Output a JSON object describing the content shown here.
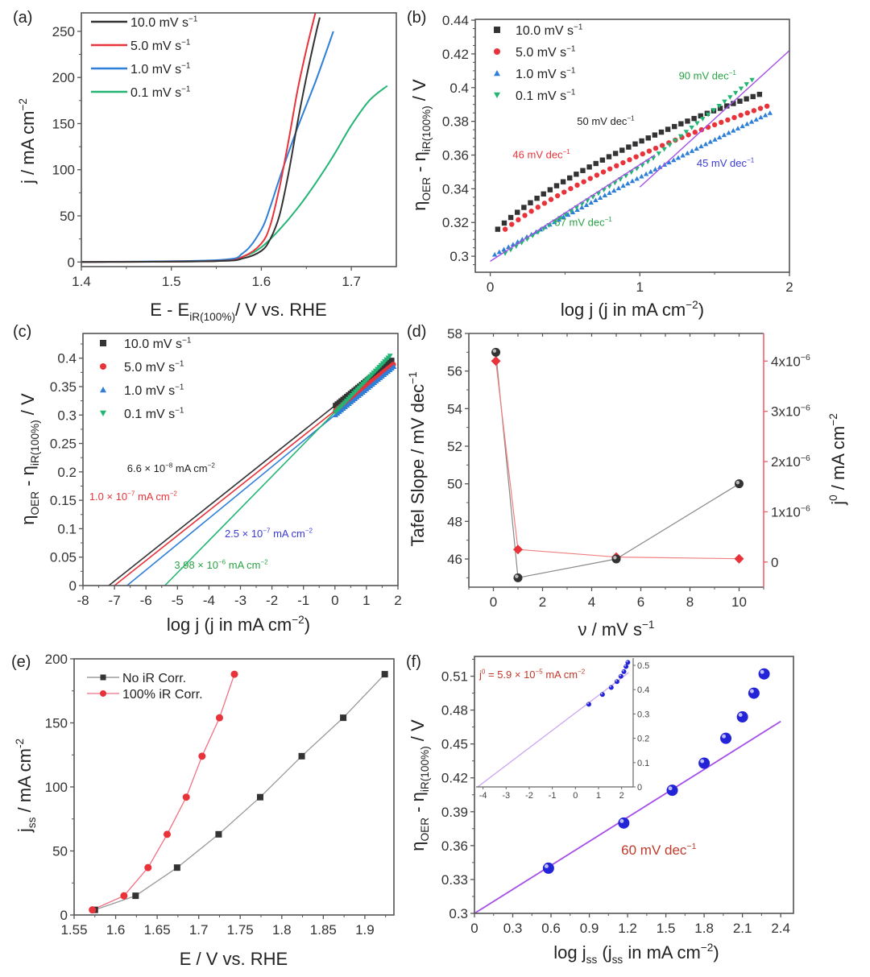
{
  "chart_data": [
    {
      "panel": "(a)",
      "type": "line",
      "xlabel": "E - E_iR(100%) / V vs. RHE",
      "ylabel": "j / mA cm^-2",
      "xlim": [
        1.4,
        1.75
      ],
      "ylim": [
        -5,
        270
      ],
      "xticks": [
        "1.4",
        "1.5",
        "1.6",
        "1.7"
      ],
      "yticks": [
        "0",
        "50",
        "100",
        "150",
        "200",
        "250"
      ],
      "legend": "top-left",
      "series": [
        {
          "name": "10.0 mV s-1",
          "color": "#333333",
          "x": [
            1.4,
            1.55,
            1.58,
            1.6,
            1.61,
            1.62,
            1.63,
            1.64,
            1.65,
            1.66,
            1.665
          ],
          "y": [
            0,
            1,
            4,
            12,
            25,
            50,
            95,
            150,
            200,
            245,
            265
          ]
        },
        {
          "name": "5.0 mV s-1",
          "color": "#e8333a",
          "x": [
            1.4,
            1.55,
            1.58,
            1.6,
            1.61,
            1.62,
            1.63,
            1.64,
            1.65,
            1.66
          ],
          "y": [
            0,
            1,
            6,
            20,
            40,
            80,
            130,
            185,
            230,
            270
          ]
        },
        {
          "name": "1.0 mV s-1",
          "color": "#2f7fd8",
          "x": [
            1.4,
            1.55,
            1.58,
            1.6,
            1.61,
            1.62,
            1.63,
            1.64,
            1.65,
            1.66,
            1.67,
            1.68
          ],
          "y": [
            0,
            2,
            10,
            35,
            60,
            90,
            118,
            145,
            170,
            195,
            222,
            250
          ]
        },
        {
          "name": "0.1 mV s-1",
          "color": "#22b573",
          "x": [
            1.4,
            1.55,
            1.58,
            1.6,
            1.62,
            1.64,
            1.66,
            1.68,
            1.7,
            1.72,
            1.74
          ],
          "y": [
            0,
            1,
            6,
            16,
            35,
            58,
            85,
            115,
            148,
            175,
            191
          ]
        }
      ]
    },
    {
      "panel": "(b)",
      "type": "scatter",
      "xlabel": "log j (j in mA cm^-2)",
      "ylabel": "η_OER - η_iR(100%) / V",
      "xlim": [
        -0.1,
        2
      ],
      "ylim": [
        0.29,
        0.44
      ],
      "xticks": [
        "0",
        "1",
        "2"
      ],
      "yticks": [
        "0.3",
        "0.32",
        "0.34",
        "0.36",
        "0.38",
        "0.4",
        "0.42",
        "0.44"
      ],
      "legend": "top-left",
      "series": [
        {
          "name": "10.0 mV s-1",
          "color": "#333333",
          "marker": "square",
          "x_start": 0.05,
          "x_end": 1.8,
          "y_start": 0.316,
          "y_end": 0.396
        },
        {
          "name": "5.0 mV s-1",
          "color": "#e8333a",
          "marker": "circle",
          "x_start": 0.1,
          "x_end": 1.85,
          "y_start": 0.316,
          "y_end": 0.389
        },
        {
          "name": "1.0 mV s-1",
          "color": "#2f7fd8",
          "marker": "triangle-up",
          "x_start": 0.03,
          "x_end": 1.87,
          "y_start": 0.301,
          "y_end": 0.385
        },
        {
          "name": "0.1 mV s-1",
          "color": "#22b573",
          "marker": "triangle-down",
          "x_start": 0.1,
          "x_end": 1.75,
          "y_start": 0.3,
          "y_end": 0.404
        }
      ],
      "fit_lines": [
        {
          "x": [
            0.0,
            1.1
          ],
          "y": [
            0.297,
            0.36
          ],
          "color": "#a64ee8"
        },
        {
          "x": [
            1.0,
            2.0
          ],
          "y": [
            0.341,
            0.422
          ],
          "color": "#a64ee8"
        }
      ],
      "annotations": [
        {
          "text": "50 mV dec^-1",
          "color": "#222222",
          "x": 0.58,
          "y": 0.378
        },
        {
          "text": "46 mV dec^-1",
          "color": "#e8333a",
          "x": 0.15,
          "y": 0.358
        },
        {
          "text": "45 mV dec^-1",
          "color": "#3b3bd6",
          "x": 1.38,
          "y": 0.353
        },
        {
          "text": "90 mV dec^-1",
          "color": "#2aa345",
          "x": 1.26,
          "y": 0.405
        },
        {
          "text": "57 mV dec^-1",
          "color": "#2aa345",
          "x": 0.43,
          "y": 0.318
        }
      ]
    },
    {
      "panel": "(c)",
      "type": "line",
      "xlabel": "log j (j in mA cm^-2)",
      "ylabel": "η_OER - η_iR(100%) / V",
      "xlim": [
        -8,
        2
      ],
      "ylim": [
        0,
        0.44
      ],
      "xticks": [
        "-8",
        "-7",
        "-6",
        "-5",
        "-4",
        "-3",
        "-2",
        "-1",
        "0",
        "1",
        "2"
      ],
      "yticks": [
        "0",
        "0.05",
        "0.1",
        "0.15",
        "0.2",
        "0.25",
        "0.3",
        "0.35",
        "0.4"
      ],
      "legend": "top-left",
      "series": [
        {
          "name": "10.0 mV s-1",
          "color": "#333333",
          "marker": "square",
          "x": [
            -7.18,
            1.8
          ],
          "y": [
            0,
            0.396
          ]
        },
        {
          "name": "5.0 mV s-1",
          "color": "#e8333a",
          "marker": "circle",
          "x": [
            -7.0,
            1.85
          ],
          "y": [
            0,
            0.389
          ]
        },
        {
          "name": "1.0 mV s-1",
          "color": "#2f7fd8",
          "marker": "triangle-up",
          "x": [
            -6.6,
            1.87
          ],
          "y": [
            0,
            0.385
          ]
        },
        {
          "name": "0.1 mV s-1",
          "color": "#22b573",
          "marker": "triangle-down",
          "x": [
            -5.4,
            1.75
          ],
          "y": [
            0,
            0.404
          ]
        }
      ],
      "annotations": [
        {
          "text": "6.6 × 10^-8 mA cm^-2",
          "color": "#222222",
          "x": -6.6,
          "y": 0.2
        },
        {
          "text": "1.0 × 10^-7 mA cm^-2",
          "color": "#e8333a",
          "x": -7.8,
          "y": 0.15
        },
        {
          "text": "2.5 × 10^-7 mA cm^-2",
          "color": "#3b3bd6",
          "x": -3.5,
          "y": 0.085
        },
        {
          "text": "3.98 × 10^-6 mA cm^-2",
          "color": "#2aa345",
          "x": -5.1,
          "y": 0.03
        }
      ]
    },
    {
      "panel": "(d)",
      "type": "line",
      "xlabel": "ν / mV s^-1",
      "ylabel": "Tafel Slope / mV dec^-1",
      "ylabel_right": "j^0 / mA cm^-2",
      "xlim": [
        -1,
        11
      ],
      "ylim": [
        44.5,
        58
      ],
      "ylim_right": [
        -5e-07,
        4.55e-06
      ],
      "xticks": [
        "0",
        "2",
        "4",
        "6",
        "8",
        "10"
      ],
      "yticks": [
        "46",
        "48",
        "50",
        "52",
        "54",
        "56",
        "58"
      ],
      "yticks_right": [
        "0",
        "1x10^-6",
        "2x10^-6",
        "3x10^-6",
        "4x10^-6"
      ],
      "series": [
        {
          "name": "Tafel Slope",
          "color": "#333333",
          "axis": "left",
          "marker": "circle",
          "x": [
            0.1,
            1,
            5,
            10
          ],
          "y": [
            57,
            45,
            46,
            50
          ]
        },
        {
          "name": "j0",
          "color": "#e8333a",
          "axis": "right",
          "marker": "diamond",
          "x": [
            0.1,
            1,
            5,
            10
          ],
          "y": [
            4e-06,
            2.5e-07,
            1e-07,
            6.6e-08
          ]
        }
      ]
    },
    {
      "panel": "(e)",
      "type": "line",
      "xlabel": "E / V vs. RHE",
      "ylabel": "j_ss / mA cm^-2",
      "xlim": [
        1.55,
        1.935
      ],
      "ylim": [
        0,
        200
      ],
      "xticks": [
        "1.55",
        "1.6",
        "1.65",
        "1.7",
        "1.75",
        "1.8",
        "1.85",
        "1.9"
      ],
      "yticks": [
        "0",
        "50",
        "100",
        "150",
        "200"
      ],
      "legend": "top-left",
      "series": [
        {
          "name": "No iR Corr.",
          "color": "#333333",
          "marker": "square",
          "x": [
            1.575,
            1.624,
            1.674,
            1.724,
            1.774,
            1.824,
            1.874,
            1.924
          ],
          "y": [
            4,
            15,
            37,
            63,
            92,
            124,
            154,
            188
          ]
        },
        {
          "name": "100% iR Corr.",
          "color": "#e8333a",
          "marker": "circle",
          "x": [
            1.572,
            1.61,
            1.639,
            1.662,
            1.685,
            1.704,
            1.725,
            1.743
          ],
          "y": [
            4,
            15,
            37,
            63,
            92,
            124,
            154,
            188
          ]
        }
      ]
    },
    {
      "panel": "(f)",
      "type": "scatter",
      "xlabel": "log j_ss (j_ss in mA cm^-2)",
      "ylabel": "η_OER - η_iR(100%) / V",
      "xlim": [
        0,
        2.5
      ],
      "ylim": [
        0.3,
        0.53
      ],
      "xticks": [
        "0",
        "0.3",
        "0.6",
        "0.9",
        "1.2",
        "1.5",
        "1.8",
        "2.1",
        "2.4"
      ],
      "yticks": [
        "0.3",
        "0.33",
        "0.36",
        "0.39",
        "0.42",
        "0.45",
        "0.48",
        "0.51"
      ],
      "series": [
        {
          "name": "data",
          "color": "#2323d8",
          "marker": "sphere",
          "x": [
            0.58,
            1.17,
            1.55,
            1.8,
            1.97,
            2.1,
            2.19,
            2.27
          ],
          "y": [
            0.34,
            0.38,
            0.409,
            0.433,
            0.455,
            0.474,
            0.495,
            0.512
          ]
        }
      ],
      "fit_line": {
        "x": [
          0,
          2.4
        ],
        "y": [
          0.3,
          0.47
        ],
        "color": "#a64ee8"
      },
      "annotation": {
        "text": "60 mV dec^-1",
        "color": "#c0392b",
        "x": 1.15,
        "y": 0.352
      },
      "inset": {
        "xlim": [
          -4.3,
          2.5
        ],
        "ylim": [
          0,
          0.53
        ],
        "xticks": [
          "-4",
          "-3",
          "-2",
          "-1",
          "0",
          "1",
          "2"
        ],
        "yticks": [
          "0",
          "0.1",
          "0.2",
          "0.3",
          "0.4",
          "0.5"
        ],
        "annotation": "j^0 = 5.9 × 10^-5 mA cm^-2",
        "annotation_color": "#c0392b",
        "x": [
          0.58,
          1.17,
          1.55,
          1.8,
          1.97,
          2.1,
          2.19,
          2.27
        ],
        "y": [
          0.34,
          0.38,
          0.409,
          0.433,
          0.455,
          0.474,
          0.495,
          0.512
        ],
        "fit_line": {
          "x": [
            -4.23,
            2.3
          ],
          "y": [
            0,
            0.47
          ]
        }
      }
    }
  ],
  "panel_labels": [
    "(a)",
    "(b)",
    "(c)",
    "(d)",
    "(e)",
    "(f)"
  ],
  "texts": {
    "a_xlabel": "E - E",
    "a_xlabel_sub": "iR(100%)",
    "a_xlabel_rest": "/ V vs. RHE",
    "a_ylabel": "j / mA cm",
    "a_ylabel_sup": "−2",
    "b_xlabel": "log j (j in mA cm",
    "b_xlabel_sup": "−2",
    "b_xlabel_end": ")",
    "eta_ylabel_main": "η",
    "eta_ylabel_sub1": "OER",
    "eta_ylabel_mid": " - η",
    "eta_ylabel_sub2": "iR(100%)",
    "eta_ylabel_end": " / V",
    "d_xlabel": "ν / mV s",
    "d_xlabel_sup": "−1",
    "d_ylabel": "Tafel Slope / mV dec",
    "d_ylabel_sup": "−1",
    "d_ylabel_right": "j",
    "d_ylabel_right_sup": "0",
    "d_ylabel_right_rest": " / mA cm",
    "d_ylabel_right_sup2": "−2",
    "e_xlabel": "E / V vs. RHE",
    "e_ylabel": "j",
    "e_ylabel_sub": "ss",
    "e_ylabel_rest": " / mA cm",
    "e_ylabel_sup": "-2",
    "f_xlabel": "log j",
    "f_xlabel_sub": "ss",
    "f_xlabel_mid": " (j",
    "f_xlabel_sub2": "ss",
    "f_xlabel_rest": " in mA cm",
    "f_xlabel_sup": "−2",
    "f_xlabel_end": ")",
    "legend_unit": "mV s",
    "legend_unit_sup": "-1"
  }
}
